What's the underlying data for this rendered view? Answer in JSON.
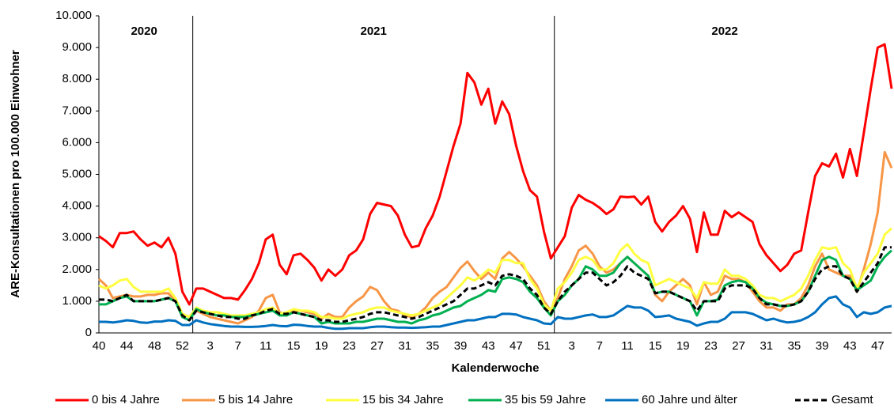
{
  "chart_data": {
    "type": "line",
    "y_label": "ARE-Konsultationen pro 100.000 Einwohner",
    "x_label": "Kalenderwoche",
    "years": [
      "2020",
      "2021",
      "2022"
    ],
    "categories": [
      "40",
      null,
      null,
      null,
      "44",
      null,
      null,
      null,
      "48",
      null,
      null,
      null,
      "52",
      null,
      null,
      null,
      "3",
      null,
      null,
      null,
      "7",
      null,
      null,
      null,
      "11",
      null,
      null,
      null,
      "15",
      null,
      null,
      null,
      "19",
      null,
      null,
      null,
      "23",
      null,
      null,
      null,
      "27",
      null,
      null,
      null,
      "31",
      null,
      null,
      null,
      "35",
      null,
      null,
      null,
      "39",
      null,
      null,
      null,
      "43",
      null,
      null,
      null,
      "47",
      null,
      null,
      null,
      "51",
      null,
      null,
      null,
      "3",
      null,
      null,
      null,
      "7",
      null,
      null,
      null,
      "11",
      null,
      null,
      null,
      "15",
      null,
      null,
      null,
      "19",
      null,
      null,
      null,
      "23",
      null,
      null,
      null,
      "27",
      null,
      null,
      null,
      "31",
      null,
      null,
      null,
      "35",
      null,
      null,
      null,
      "39",
      null,
      null,
      null,
      "43",
      null,
      null,
      null,
      "47",
      null,
      null
    ],
    "ylim": [
      0,
      10000
    ],
    "yticks": [
      0,
      {
        "value": 1000,
        "label": "1.000"
      },
      {
        "value": 2000,
        "label": "2.000"
      },
      {
        "value": 3000,
        "label": "3.000"
      },
      {
        "value": 4000,
        "label": "4.000"
      },
      {
        "value": 5000,
        "label": "5.000"
      },
      {
        "value": 6000,
        "label": "6.000"
      },
      {
        "value": 7000,
        "label": "7.000"
      },
      {
        "value": 8000,
        "label": "8.000"
      },
      {
        "value": 9000,
        "label": "9.000"
      },
      {
        "value": 10000,
        "label": "10.000"
      }
    ],
    "series": [
      {
        "name": "0 bis 4 Jahre",
        "color": "#ff0000",
        "values": [
          3050,
          2900,
          2700,
          3150,
          3150,
          3200,
          2950,
          2750,
          2850,
          2700,
          3000,
          2500,
          1300,
          900,
          1400,
          1400,
          1300,
          1200,
          1100,
          1100,
          1050,
          1350,
          1700,
          2200,
          2950,
          3100,
          2150,
          1850,
          2450,
          2500,
          2300,
          2050,
          1650,
          2000,
          1800,
          2000,
          2450,
          2600,
          2950,
          3750,
          4100,
          4050,
          4000,
          3700,
          3100,
          2700,
          2750,
          3300,
          3700,
          4300,
          5100,
          5900,
          6600,
          8200,
          7900,
          7200,
          7700,
          6600,
          7300,
          6900,
          5900,
          5100,
          4500,
          4300,
          3200,
          2350,
          2700,
          3050,
          3950,
          4350,
          4200,
          4100,
          3950,
          3750,
          3900,
          4300,
          4280,
          4300,
          4050,
          4300,
          3500,
          3200,
          3500,
          3700,
          4000,
          3600,
          2550,
          3800,
          3100,
          3100,
          3850,
          3650,
          3800,
          3650,
          3500,
          2800,
          2450,
          2200,
          1950,
          2150,
          2500,
          2600,
          3800,
          4950,
          5350,
          5250,
          5650,
          4900,
          5800,
          4950,
          6300,
          7700,
          9000,
          9100,
          7700
        ]
      },
      {
        "name": "5 bis 14 Jahre",
        "color": "#f79646",
        "values": [
          1700,
          1500,
          1100,
          1150,
          1200,
          1150,
          1150,
          1200,
          1200,
          1250,
          1250,
          1000,
          600,
          500,
          700,
          600,
          500,
          450,
          400,
          350,
          300,
          400,
          500,
          700,
          1100,
          1200,
          650,
          550,
          700,
          700,
          650,
          600,
          450,
          600,
          500,
          500,
          800,
          1000,
          1150,
          1450,
          1350,
          1000,
          750,
          700,
          550,
          500,
          600,
          800,
          1100,
          1300,
          1450,
          1750,
          2050,
          2250,
          1950,
          1700,
          1900,
          1700,
          2350,
          2550,
          2350,
          2100,
          1800,
          1500,
          1000,
          700,
          1100,
          1700,
          2100,
          2600,
          2750,
          2500,
          2100,
          1900,
          2000,
          2200,
          2400,
          2200,
          2000,
          1800,
          1200,
          1000,
          1300,
          1500,
          1700,
          1500,
          900,
          1600,
          1200,
          1300,
          1800,
          1700,
          1700,
          1600,
          1300,
          1000,
          800,
          800,
          700,
          900,
          900,
          1100,
          1500,
          2100,
          2500,
          2000,
          1900,
          1800,
          1800,
          1300,
          2000,
          2800,
          3800,
          5700,
          5200
        ]
      },
      {
        "name": "15 bis 34 Jahre",
        "color": "#ffff40",
        "values": [
          1500,
          1400,
          1500,
          1650,
          1700,
          1450,
          1300,
          1300,
          1300,
          1300,
          1400,
          1100,
          600,
          500,
          800,
          700,
          650,
          650,
          600,
          550,
          550,
          550,
          600,
          650,
          750,
          800,
          600,
          650,
          750,
          700,
          700,
          650,
          500,
          500,
          450,
          450,
          550,
          600,
          650,
          750,
          800,
          800,
          700,
          650,
          600,
          550,
          600,
          700,
          800,
          900,
          1100,
          1300,
          1500,
          1750,
          1650,
          1800,
          2000,
          1900,
          2300,
          2300,
          2200,
          2200,
          1700,
          1400,
          900,
          700,
          1400,
          1600,
          1900,
          2300,
          2400,
          2300,
          2000,
          2000,
          2200,
          2600,
          2800,
          2500,
          2300,
          2200,
          1500,
          1600,
          1700,
          1600,
          1500,
          1400,
          1100,
          1600,
          1550,
          1550,
          2000,
          1800,
          1800,
          1700,
          1500,
          1200,
          1100,
          1100,
          1000,
          1100,
          1200,
          1400,
          1800,
          2300,
          2700,
          2650,
          2700,
          2200,
          2000,
          1400,
          1900,
          2200,
          2500,
          3100,
          3300
        ]
      },
      {
        "name": "35 bis 59 Jahre",
        "color": "#00b050",
        "values": [
          900,
          900,
          1000,
          1100,
          1150,
          1000,
          1000,
          1000,
          1000,
          1050,
          1100,
          1000,
          500,
          400,
          750,
          650,
          600,
          550,
          550,
          500,
          500,
          500,
          550,
          600,
          650,
          700,
          550,
          550,
          650,
          600,
          550,
          500,
          300,
          350,
          300,
          300,
          300,
          350,
          350,
          400,
          450,
          450,
          400,
          350,
          350,
          300,
          400,
          450,
          550,
          600,
          700,
          800,
          850,
          1000,
          1100,
          1200,
          1350,
          1300,
          1700,
          1750,
          1700,
          1600,
          1300,
          1100,
          800,
          550,
          1000,
          1200,
          1500,
          1700,
          2100,
          2000,
          1800,
          1800,
          1900,
          2200,
          2400,
          2200,
          2000,
          1800,
          1250,
          1300,
          1300,
          1200,
          1100,
          1000,
          550,
          1000,
          1000,
          1050,
          1500,
          1600,
          1650,
          1600,
          1400,
          1100,
          950,
          900,
          850,
          850,
          900,
          1000,
          1300,
          1800,
          2300,
          2400,
          2300,
          1800,
          1700,
          1350,
          1500,
          1650,
          2100,
          2400,
          2600
        ]
      },
      {
        "name": "60 Jahre und älter",
        "color": "#0070c0",
        "values": [
          350,
          350,
          330,
          360,
          400,
          380,
          330,
          320,
          360,
          360,
          400,
          380,
          250,
          250,
          400,
          330,
          280,
          250,
          220,
          200,
          200,
          190,
          190,
          200,
          220,
          250,
          220,
          210,
          260,
          250,
          220,
          200,
          200,
          160,
          130,
          130,
          150,
          150,
          150,
          180,
          200,
          200,
          180,
          170,
          170,
          160,
          170,
          180,
          200,
          200,
          250,
          300,
          350,
          400,
          400,
          450,
          500,
          500,
          600,
          600,
          580,
          500,
          450,
          400,
          300,
          280,
          500,
          450,
          450,
          500,
          550,
          580,
          500,
          500,
          550,
          700,
          850,
          800,
          800,
          700,
          500,
          520,
          550,
          450,
          400,
          350,
          230,
          300,
          350,
          350,
          450,
          650,
          650,
          650,
          600,
          500,
          400,
          450,
          380,
          330,
          350,
          400,
          500,
          650,
          900,
          1100,
          1150,
          900,
          800,
          500,
          650,
          600,
          650,
          800,
          850
        ]
      },
      {
        "name": "Gesamt",
        "color": "#000000",
        "dashed": true,
        "values": [
          1050,
          1050,
          1000,
          1100,
          1200,
          1000,
          1000,
          1000,
          1000,
          1050,
          1100,
          1000,
          550,
          400,
          700,
          650,
          600,
          550,
          500,
          500,
          450,
          450,
          550,
          600,
          700,
          750,
          600,
          600,
          650,
          600,
          550,
          500,
          400,
          400,
          350,
          350,
          400,
          450,
          500,
          600,
          650,
          650,
          600,
          550,
          500,
          450,
          500,
          600,
          700,
          800,
          900,
          1000,
          1200,
          1400,
          1400,
          1500,
          1600,
          1500,
          1800,
          1850,
          1800,
          1700,
          1400,
          1200,
          800,
          600,
          1000,
          1300,
          1500,
          1700,
          1900,
          1900,
          1700,
          1500,
          1600,
          1800,
          2100,
          1900,
          1800,
          1700,
          1250,
          1300,
          1300,
          1200,
          1100,
          1000,
          700,
          1000,
          1000,
          1000,
          1400,
          1500,
          1500,
          1500,
          1400,
          1100,
          900,
          900,
          850,
          850,
          900,
          1000,
          1300,
          1700,
          2000,
          2100,
          2100,
          1800,
          1700,
          1300,
          1600,
          1900,
          2200,
          2700,
          2700
        ]
      }
    ]
  }
}
